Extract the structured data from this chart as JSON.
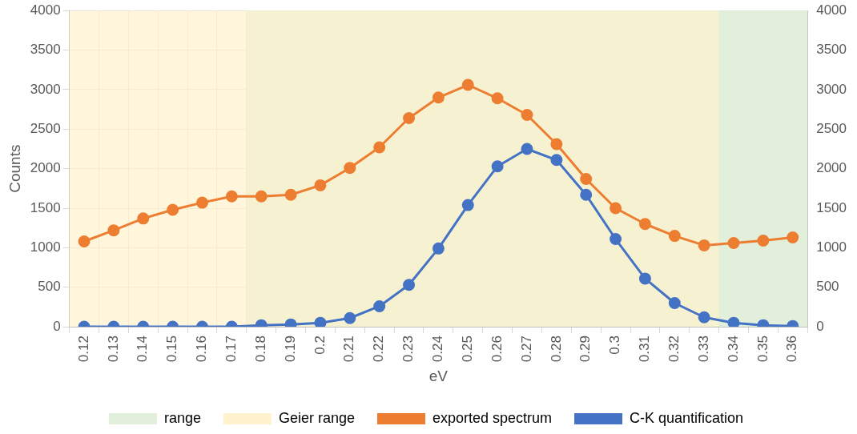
{
  "chart_data": {
    "type": "line",
    "xlabel": "eV",
    "ylabel": "Counts",
    "categories": [
      "0.12",
      "0.13",
      "0.14",
      "0.15",
      "0.16",
      "0.17",
      "0.18",
      "0.19",
      "0.2",
      "0.21",
      "0.22",
      "0.23",
      "0.24",
      "0.25",
      "0.26",
      "0.27",
      "0.28",
      "0.29",
      "0.3",
      "0.31",
      "0.32",
      "0.33",
      "0.34",
      "0.35",
      "0.36"
    ],
    "series": [
      {
        "name": "exported spectrum",
        "color": "#ed7d31",
        "values": [
          1080,
          1220,
          1370,
          1480,
          1570,
          1650,
          1650,
          1670,
          1790,
          2010,
          2270,
          2640,
          2900,
          3060,
          2890,
          2680,
          2310,
          1870,
          1500,
          1300,
          1150,
          1030,
          1060,
          1090,
          1130
        ]
      },
      {
        "name": "C-K quantification",
        "color": "#4472c4",
        "values": [
          0,
          0,
          0,
          0,
          0,
          0,
          20,
          30,
          50,
          110,
          260,
          530,
          990,
          1540,
          2030,
          2250,
          2110,
          1670,
          1110,
          610,
          300,
          120,
          50,
          20,
          10
        ]
      }
    ],
    "ylim": [
      0,
      4000
    ],
    "yticks": [
      0,
      500,
      1000,
      1500,
      2000,
      2500,
      3000,
      3500,
      4000
    ],
    "y2lim": [
      0,
      4000
    ],
    "y2ticks": [
      0,
      500,
      1000,
      1500,
      2000,
      2500,
      3000,
      3500,
      4000
    ],
    "bands": [
      {
        "axis": "x",
        "from": "0.18",
        "to": "0.36",
        "label": "range",
        "color": "#e2efda"
      },
      {
        "axis": "x",
        "from": "0.12",
        "to": "0.33",
        "label": "Geier range",
        "color": "#fff2cc"
      }
    ],
    "grid": true,
    "legend": "bottom",
    "marker": "circle",
    "line_style": "solid"
  }
}
